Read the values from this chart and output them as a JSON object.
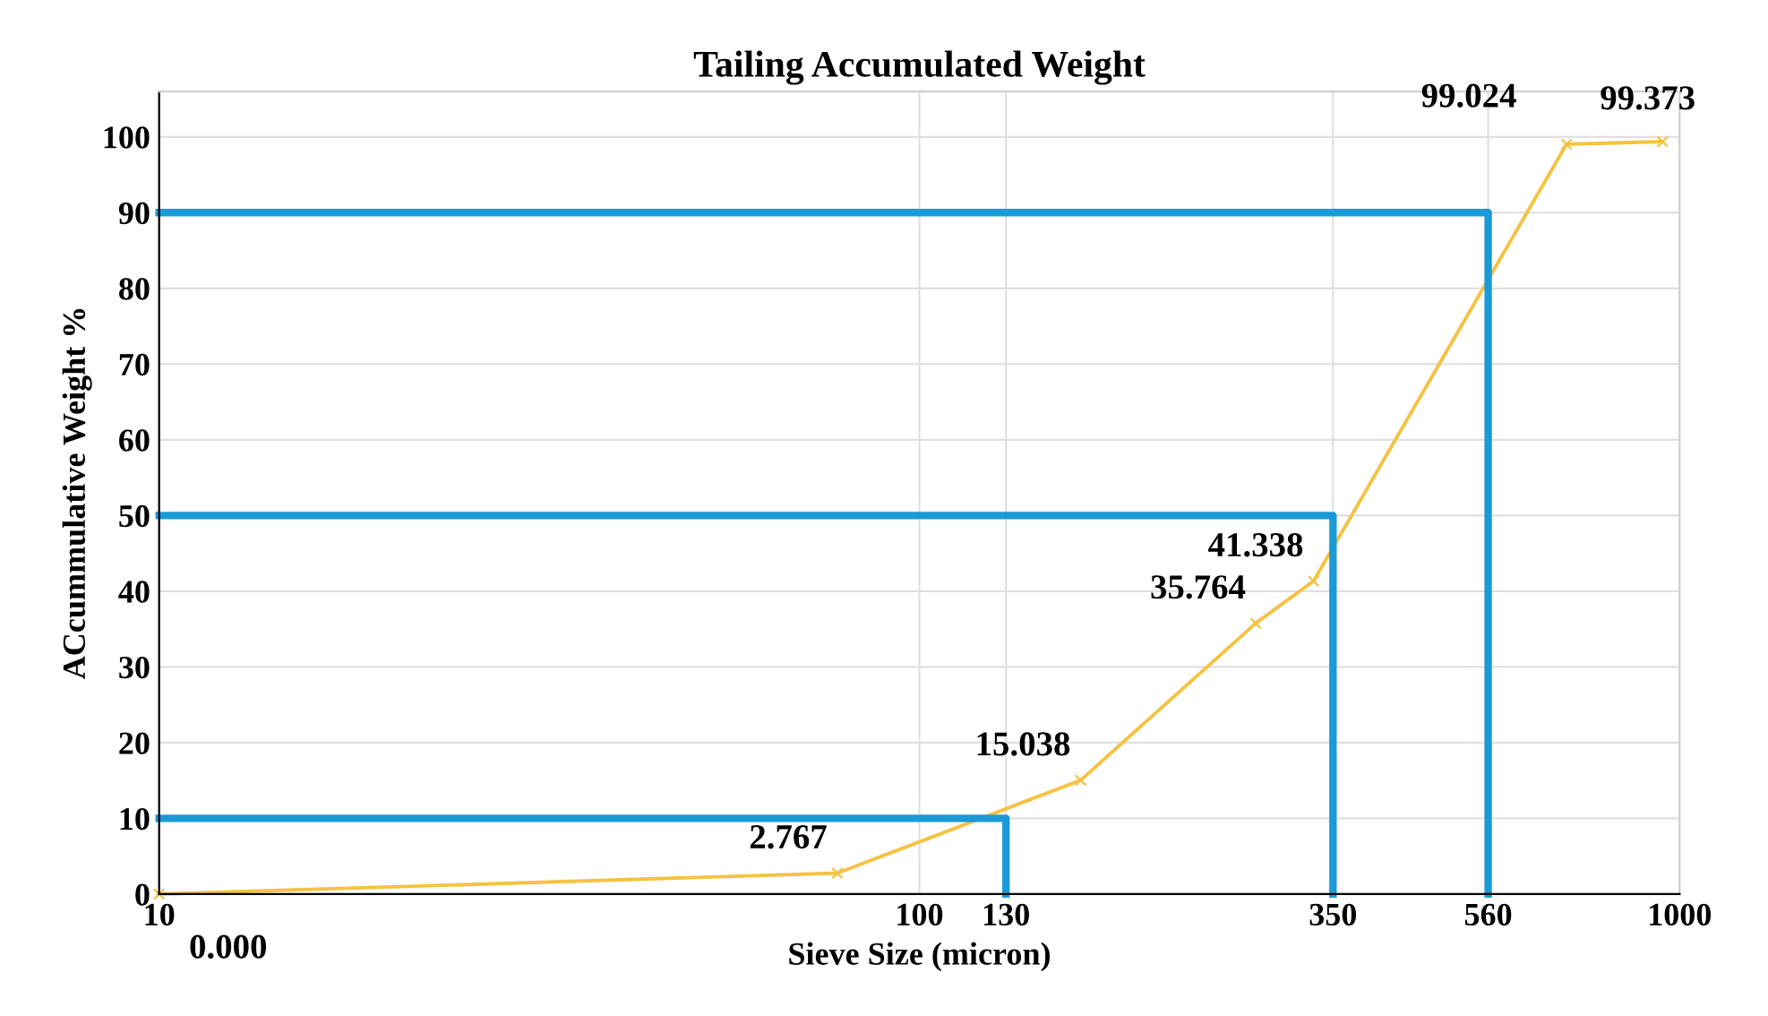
{
  "chart_data": {
    "type": "line",
    "title": "Tailing Accumulated Weight",
    "xlabel": "Sieve Size (micron)",
    "ylabel": "ACcummulative Weight %",
    "log": "x",
    "xlim": [
      10,
      1000
    ],
    "xticks": [
      10,
      100,
      130,
      350,
      560,
      1000
    ],
    "ylim": [
      0,
      106
    ],
    "yticks": [
      0,
      10,
      20,
      30,
      40,
      50,
      60,
      70,
      80,
      90,
      100
    ],
    "grid": true,
    "line_style": "solid",
    "series": [
      {
        "color": "#f5c242",
        "marker": "cross",
        "x": [
          10,
          78,
          163,
          277,
          330,
          710,
          950
        ],
        "values": [
          0.0,
          2.767,
          15.038,
          35.764,
          41.338,
          99.024,
          99.373
        ],
        "value_labels": [
          "0.000",
          "2.767",
          "15.038",
          "35.764",
          "41.338",
          "99.024",
          "99.373"
        ]
      },
      {
        "color": "#1a9ad6",
        "x": [
          10,
          130,
          130
        ],
        "values": [
          10,
          10,
          0
        ]
      },
      {
        "color": "#1a9ad6",
        "x": [
          10,
          350,
          350
        ],
        "values": [
          50,
          50,
          0
        ]
      },
      {
        "color": "#1a9ad6",
        "x": [
          10,
          560,
          560
        ],
        "values": [
          90,
          90,
          0
        ]
      }
    ]
  }
}
